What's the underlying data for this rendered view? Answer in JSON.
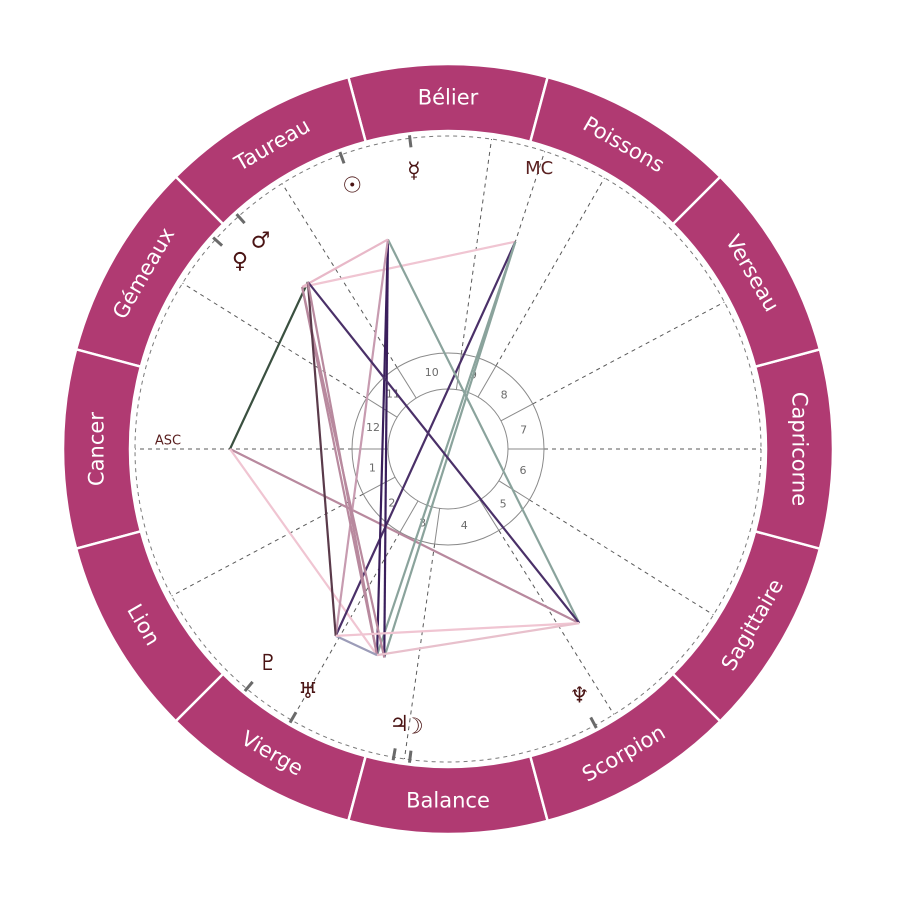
{
  "zodiac": {
    "ring_color": "#b03a72",
    "signs": [
      {
        "name": "Bélier",
        "start": 75
      },
      {
        "name": "Taureau",
        "start": 105
      },
      {
        "name": "Gémeaux",
        "start": 135
      },
      {
        "name": "Cancer",
        "start": 165
      },
      {
        "name": "Lion",
        "start": 195
      },
      {
        "name": "Vierge",
        "start": 225
      },
      {
        "name": "Balance",
        "start": 255
      },
      {
        "name": "Scorpion",
        "start": 285
      },
      {
        "name": "Sagittaire",
        "start": 315
      },
      {
        "name": "Capricorne",
        "start": 345
      },
      {
        "name": "Verseau",
        "start": 15
      },
      {
        "name": "Poissons",
        "start": 45
      }
    ]
  },
  "houses": {
    "cusps": [
      180,
      208,
      240,
      262,
      302,
      328,
      0,
      28,
      60,
      82,
      122,
      148
    ],
    "labels": [
      "1",
      "2",
      "3",
      "4",
      "5",
      "6",
      "7",
      "8",
      "9",
      "10",
      "11",
      "12"
    ]
  },
  "axes": [
    {
      "label": "ASC",
      "angle": 180
    },
    {
      "label": "MC",
      "angle": 72
    }
  ],
  "planets": [
    {
      "id": "sun",
      "name": "Soleil",
      "glyph": "☉",
      "angle": 110,
      "aspect_angle": 106
    },
    {
      "id": "mercury",
      "name": "Mercure",
      "glyph": "☿",
      "angle": 97,
      "aspect_angle": 106
    },
    {
      "id": "venus",
      "name": "Vénus",
      "glyph": "♀",
      "angle": 138,
      "aspect_angle": 132
    },
    {
      "id": "mars",
      "name": "Mars",
      "glyph": "♂",
      "angle": 132,
      "aspect_angle": 130
    },
    {
      "id": "pluto",
      "name": "Pluton",
      "glyph": "♇",
      "angle": 230,
      "aspect_angle": 239
    },
    {
      "id": "uranus",
      "name": "Uranus",
      "glyph": "♅",
      "angle": 240,
      "aspect_angle": 239
    },
    {
      "id": "moon",
      "name": "Lune",
      "glyph": "☽",
      "angle": 263,
      "aspect_angle": 251
    },
    {
      "id": "jupiter",
      "name": "Jupiter",
      "glyph": "♃",
      "angle": 260,
      "aspect_angle": 253
    },
    {
      "id": "neptune",
      "name": "Neptune",
      "glyph": "♆",
      "angle": 298,
      "aspect_angle": 307
    }
  ],
  "aspects": [
    {
      "a": "asc",
      "b": "mars",
      "color": "#3a5040"
    },
    {
      "a": "asc",
      "b": "neptune",
      "color": "#b8899e"
    },
    {
      "a": "asc",
      "b": "moon",
      "color": "#f0c5d2"
    },
    {
      "a": "mc",
      "b": "venus",
      "color": "#f0c5d2"
    },
    {
      "a": "mc",
      "b": "pluto",
      "color": "#4a3068"
    },
    {
      "a": "mc",
      "b": "moon",
      "color": "#8aa39c"
    },
    {
      "a": "mc",
      "b": "jupiter",
      "color": "#8aa39c"
    },
    {
      "a": "sun",
      "b": "moon",
      "color": "#3a1f5c"
    },
    {
      "a": "sun",
      "b": "jupiter",
      "color": "#3a1f5c"
    },
    {
      "a": "sun",
      "b": "neptune",
      "color": "#8aa39c"
    },
    {
      "a": "sun",
      "b": "uranus",
      "color": "#c79bb0"
    },
    {
      "a": "sun",
      "b": "venus",
      "color": "#e8b8c8"
    },
    {
      "a": "venus",
      "b": "moon",
      "color": "#b8899e"
    },
    {
      "a": "venus",
      "b": "jupiter",
      "color": "#b8899e"
    },
    {
      "a": "mars",
      "b": "neptune",
      "color": "#4a3068"
    },
    {
      "a": "mars",
      "b": "pluto",
      "color": "#5a3a4a"
    },
    {
      "a": "mars",
      "b": "moon",
      "color": "#b8899e"
    },
    {
      "a": "pluto",
      "b": "moon",
      "color": "#9c9cb8"
    },
    {
      "a": "uranus",
      "b": "neptune",
      "color": "#f0c5d2"
    },
    {
      "a": "moon",
      "b": "neptune",
      "color": "#e8c0cc"
    }
  ]
}
